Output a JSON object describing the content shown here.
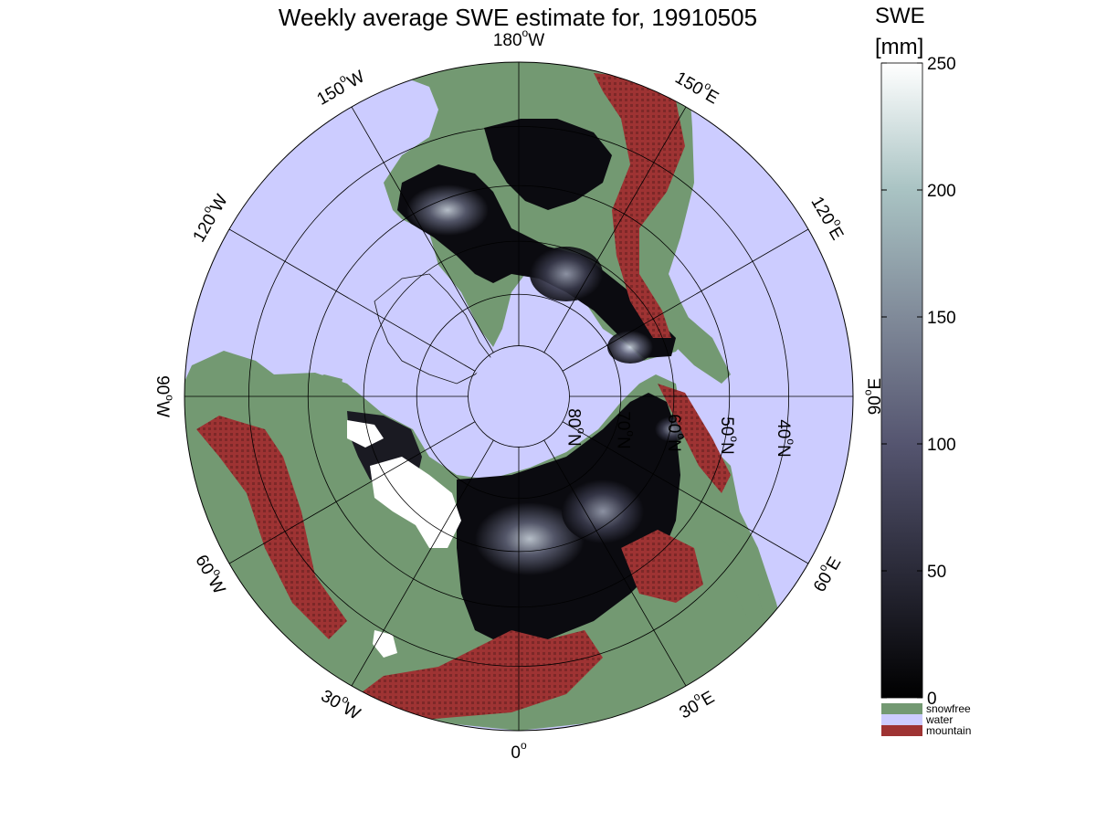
{
  "title": "Weekly average SWE estimate for, 19910505",
  "map": {
    "projection": "north-polar stereographic",
    "longitude_labels": [
      {
        "text": "90°W",
        "deg": "90",
        "hemi": "W",
        "lon": -90
      },
      {
        "text": "120°W",
        "deg": "120",
        "hemi": "W",
        "lon": -120
      },
      {
        "text": "150°W",
        "deg": "150",
        "hemi": "W",
        "lon": -150
      },
      {
        "text": "180°W",
        "deg": "180",
        "hemi": "W",
        "lon": 180
      },
      {
        "text": "150°E",
        "deg": "150",
        "hemi": "E",
        "lon": 150
      },
      {
        "text": "120°E",
        "deg": "120",
        "hemi": "E",
        "lon": 120
      },
      {
        "text": "90°E",
        "deg": "90",
        "hemi": "E",
        "lon": 90
      },
      {
        "text": "60°E",
        "deg": "60",
        "hemi": "E",
        "lon": 60
      },
      {
        "text": "30°E",
        "deg": "30",
        "hemi": "E",
        "lon": 30
      },
      {
        "text": "0°",
        "deg": "0",
        "hemi": "",
        "lon": 0
      },
      {
        "text": "30°W",
        "deg": "30",
        "hemi": "W",
        "lon": -30
      },
      {
        "text": "60°W",
        "deg": "60",
        "hemi": "W",
        "lon": -60
      }
    ],
    "latitude_labels": [
      {
        "text": "80°N",
        "deg": "80",
        "lat": 80
      },
      {
        "text": "70°N",
        "deg": "70",
        "lat": 70
      },
      {
        "text": "60°N",
        "deg": "60",
        "lat": 60
      },
      {
        "text": "50°N",
        "deg": "50",
        "lat": 50
      },
      {
        "text": "40°N",
        "deg": "40",
        "lat": 40
      }
    ],
    "colors": {
      "water": "#ccccff",
      "snowfree": "#739972",
      "mountain": "#9e3333",
      "swe_high": "#ffffff",
      "swe_low": "#0b0b10"
    }
  },
  "colorbar": {
    "title": "SWE",
    "unit": "[mm]",
    "min": 0,
    "max": 250,
    "ticks": [
      {
        "value": 0,
        "label": "0"
      },
      {
        "value": 50,
        "label": "50"
      },
      {
        "value": 100,
        "label": "100"
      },
      {
        "value": 150,
        "label": "150"
      },
      {
        "value": 200,
        "label": "200"
      },
      {
        "value": 250,
        "label": "250"
      }
    ],
    "gradient_stops": [
      "#000000",
      "#2a2a38",
      "#555570",
      "#808a99",
      "#a9c3c3",
      "#ffffff"
    ],
    "categories": [
      {
        "name": "snowfree",
        "color": "#739972"
      },
      {
        "name": "water",
        "color": "#ccccff"
      },
      {
        "name": "mountain",
        "color": "#9e3333"
      }
    ]
  }
}
